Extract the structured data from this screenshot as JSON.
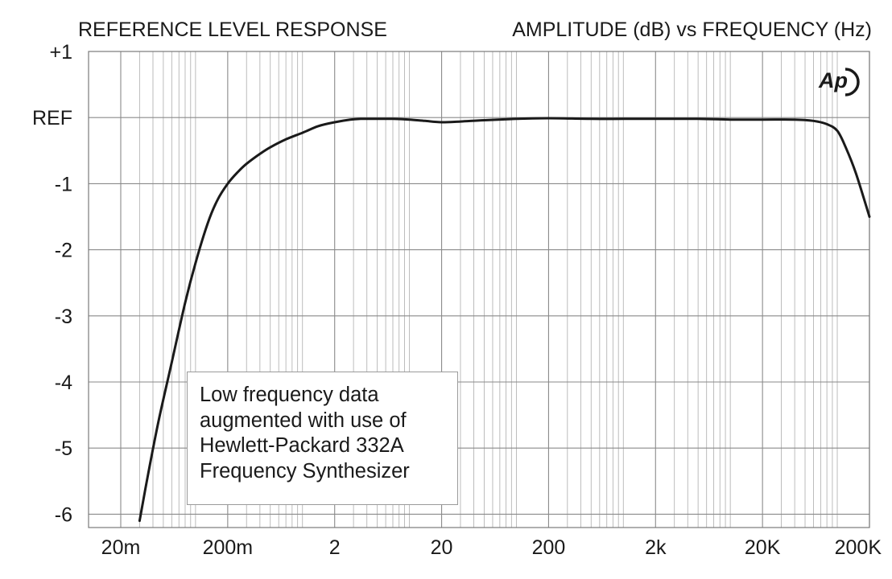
{
  "chart_data": {
    "type": "line",
    "title_left": "REFERENCE LEVEL RESPONSE",
    "title_right": "AMPLITUDE (dB) vs FREQUENCY (Hz)",
    "x_scale": "log",
    "xlim": [
      0.01,
      200000
    ],
    "ylim": [
      -6.2,
      1
    ],
    "x_ticks": [
      {
        "value": 0.02,
        "label": "20m"
      },
      {
        "value": 0.2,
        "label": "200m"
      },
      {
        "value": 2,
        "label": "2"
      },
      {
        "value": 20,
        "label": "20"
      },
      {
        "value": 200,
        "label": "200"
      },
      {
        "value": 2000,
        "label": "2k"
      },
      {
        "value": 20000,
        "label": "20K"
      },
      {
        "value": 200000,
        "label": "200K"
      }
    ],
    "y_ticks": [
      {
        "value": 1,
        "label": "+1"
      },
      {
        "value": 0,
        "label": "REF"
      },
      {
        "value": -1,
        "label": "-1"
      },
      {
        "value": -2,
        "label": "-2"
      },
      {
        "value": -3,
        "label": "-3"
      },
      {
        "value": -4,
        "label": "-4"
      },
      {
        "value": -5,
        "label": "-5"
      },
      {
        "value": -6,
        "label": "-6"
      }
    ],
    "grid": true,
    "series": [
      {
        "x": [
          0.03,
          0.036,
          0.045,
          0.06,
          0.08,
          0.1,
          0.13,
          0.16,
          0.2,
          0.25,
          0.3,
          0.4,
          0.5,
          0.7,
          1,
          1.4,
          2,
          2.8,
          3.5,
          5,
          7,
          10,
          14,
          20,
          30,
          50,
          100,
          200,
          500,
          1000,
          2000,
          5000,
          10000,
          20000,
          40000,
          60000,
          80000,
          100000,
          120000,
          150000,
          200000
        ],
        "y": [
          -6.1,
          -5.4,
          -4.6,
          -3.7,
          -2.8,
          -2.2,
          -1.6,
          -1.25,
          -1.0,
          -0.82,
          -0.7,
          -0.55,
          -0.45,
          -0.33,
          -0.23,
          -0.13,
          -0.07,
          -0.03,
          -0.02,
          -0.02,
          -0.02,
          -0.03,
          -0.05,
          -0.07,
          -0.06,
          -0.04,
          -0.02,
          -0.01,
          -0.02,
          -0.02,
          -0.02,
          -0.02,
          -0.03,
          -0.03,
          -0.03,
          -0.05,
          -0.1,
          -0.2,
          -0.45,
          -0.85,
          -1.5
        ],
        "color": "#1a1a1a"
      }
    ],
    "annotation": [
      "Low frequency data",
      "augmented with use of",
      "Hewlett-Packard 332A",
      "Frequency Synthesizer"
    ],
    "logo": "Ap"
  }
}
